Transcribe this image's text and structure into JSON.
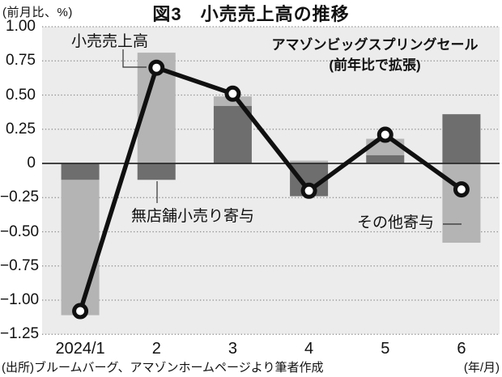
{
  "header": {
    "unit_label": "(前月比、%)",
    "title": "図3　小売売上高の推移"
  },
  "annotations": {
    "sale_line1": "アマゾンビッグスプリングセール",
    "sale_line2": "(前年比で拡張)",
    "line_label": "小売売上高",
    "nonstore_label": "無店舗小売り寄与",
    "other_label": "その他寄与"
  },
  "footer": {
    "source": "(出所)ブルームバーグ、アマゾンホームページより筆者作成",
    "axis_unit": "(年/月)"
  },
  "chart_data": {
    "type": "bar",
    "subtype": "stacked-contribution-bars-with-line",
    "title": "図3　小売売上高の推移",
    "ylabel": "(前月比、%)",
    "xlabel": "(年/月)",
    "categories": [
      "2024/1",
      "2",
      "3",
      "4",
      "5",
      "6"
    ],
    "series": [
      {
        "name": "小売売上高",
        "type": "line",
        "color": "#101010",
        "values": [
          -1.08,
          0.7,
          0.51,
          -0.2,
          0.21,
          -0.19
        ]
      },
      {
        "name": "無店舗小売り寄与",
        "type": "bar",
        "color": "#6e6e6e",
        "values": [
          -0.12,
          -0.12,
          0.42,
          -0.24,
          0.06,
          0.36
        ]
      },
      {
        "name": "その他寄与",
        "type": "bar",
        "color": "#b4b4b4",
        "values": [
          -0.99,
          0.81,
          0.07,
          0.02,
          0.12,
          -0.58
        ]
      }
    ],
    "stacking": "bars stacked from zero; segments with same sign stack outward",
    "ylim": [
      -1.25,
      1.0
    ],
    "ytick_step": 0.25,
    "yticks": [
      "1.00",
      "0.75",
      "0.50",
      "0.25",
      "0",
      "−0.25",
      "−0.50",
      "−0.75",
      "−1.00",
      "−1.25"
    ],
    "grid": "dotted horizontal gridlines, solid zero line",
    "legend_position": "none (inline labels with leader lines)",
    "plot_bg": "#ececec",
    "grid_color": "#8a8a8a",
    "marker": "white circle with black ring"
  }
}
